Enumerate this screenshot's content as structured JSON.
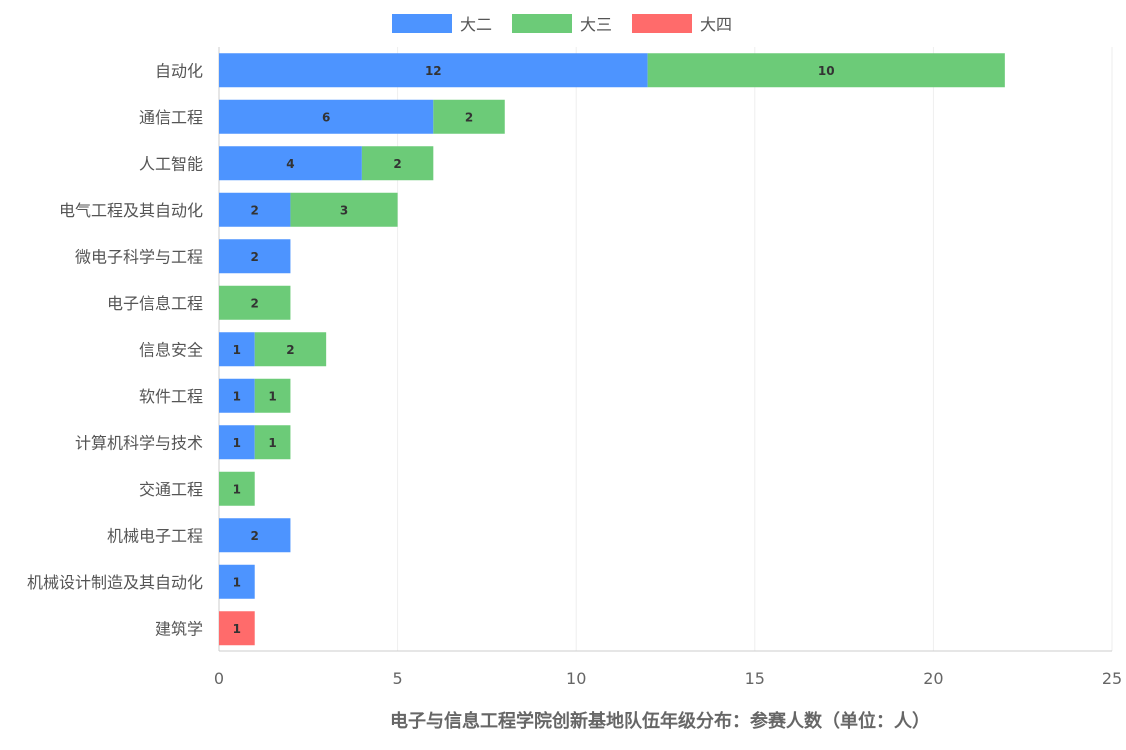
{
  "chart_data": {
    "type": "bar",
    "orientation": "horizontal",
    "stacked": true,
    "title": "",
    "xlabel": "电子与信息工程学院创新基地队伍年级分布：参赛人数（单位：人）",
    "ylabel": "",
    "xlim": [
      0,
      25
    ],
    "xticks": [
      0,
      5,
      10,
      15,
      20,
      25
    ],
    "grid": true,
    "legend_position": "top",
    "categories": [
      "自动化",
      "通信工程",
      "人工智能",
      "电气工程及其自动化",
      "微电子科学与工程",
      "电子信息工程",
      "信息安全",
      "软件工程",
      "计算机科学与技术",
      "交通工程",
      "机械电子工程",
      "机械设计制造及其自动化",
      "建筑学"
    ],
    "series": [
      {
        "name": "大二",
        "color": "#4d94ff",
        "values": [
          12,
          6,
          4,
          2,
          2,
          0,
          1,
          1,
          1,
          0,
          2,
          1,
          0
        ]
      },
      {
        "name": "大三",
        "color": "#6ccb78",
        "values": [
          10,
          2,
          2,
          3,
          0,
          2,
          2,
          1,
          1,
          1,
          0,
          0,
          0
        ]
      },
      {
        "name": "大四",
        "color": "#ff6b6b",
        "values": [
          0,
          0,
          0,
          0,
          0,
          0,
          0,
          0,
          0,
          0,
          0,
          0,
          1
        ]
      }
    ]
  }
}
